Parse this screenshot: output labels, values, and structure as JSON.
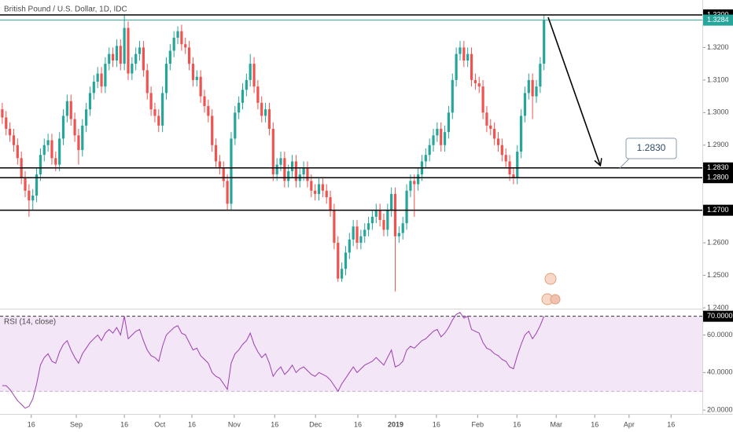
{
  "chart_data": [
    {
      "type": "candlestick",
      "title": "British Pound / U.S. Dollar, 1D, IDC",
      "up_color": "#26a69a",
      "down_color": "#ef5350",
      "xlim": [
        -0.6,
        183.5
      ],
      "ylim": [
        1.24,
        1.33458
      ],
      "yticks": [
        {
          "value": 1.24,
          "label": "1.2400"
        },
        {
          "value": 1.25,
          "label": "1.2500"
        },
        {
          "value": 1.26,
          "label": "1.2600"
        },
        {
          "value": 1.29,
          "label": "1.2900"
        },
        {
          "value": 1.3,
          "label": "1.3000"
        },
        {
          "value": 1.31,
          "label": "1.3100"
        },
        {
          "value": 1.32,
          "label": "1.3200"
        }
      ],
      "levels": [
        {
          "value": 1.33,
          "label": "1.3300"
        },
        {
          "value": 1.283,
          "label": "1.2830"
        },
        {
          "value": 1.28,
          "label": "1.2800"
        },
        {
          "value": 1.27,
          "label": "1.2700"
        }
      ],
      "last_price": {
        "value": 1.3284,
        "label": "1.3284",
        "color": "#26a69a"
      },
      "annotation": "1.2830",
      "xticks": [
        {
          "value": 7.6,
          "label": "16"
        },
        {
          "value": 19.4,
          "label": "Sep"
        },
        {
          "value": 32,
          "label": "16"
        },
        {
          "value": 41.3,
          "label": "Oct"
        },
        {
          "value": 49.7,
          "label": "16"
        },
        {
          "value": 60.8,
          "label": "Nov"
        },
        {
          "value": 71.4,
          "label": "16"
        },
        {
          "value": 82.1,
          "label": "Dec"
        },
        {
          "value": 93.2,
          "label": "16"
        },
        {
          "value": 103.1,
          "label": "2019",
          "bold": true
        },
        {
          "value": 113.8,
          "label": "16"
        },
        {
          "value": 124.6,
          "label": "Feb"
        },
        {
          "value": 134.9,
          "label": "16"
        },
        {
          "value": 145.2,
          "label": "Mar"
        },
        {
          "value": 155.3,
          "label": "16"
        },
        {
          "value": 164.3,
          "label": "Apr"
        },
        {
          "value": 175.3,
          "label": "16"
        }
      ],
      "ohlc": [
        [
          1.301,
          1.303,
          1.2965,
          1.2985
        ],
        [
          1.2985,
          1.3005,
          1.293,
          1.295
        ],
        [
          1.295,
          1.297,
          1.291,
          1.293
        ],
        [
          1.293,
          1.295,
          1.288,
          1.29
        ],
        [
          1.29,
          1.292,
          1.284,
          1.286
        ],
        [
          1.286,
          1.288,
          1.278,
          1.28
        ],
        [
          1.28,
          1.282,
          1.274,
          1.276
        ],
        [
          1.276,
          1.278,
          1.268,
          1.273
        ],
        [
          1.273,
          1.2765,
          1.27,
          1.2745
        ],
        [
          1.2745,
          1.283,
          1.2725,
          1.281
        ],
        [
          1.281,
          1.289,
          1.279,
          1.287
        ],
        [
          1.287,
          1.292,
          1.285,
          1.29
        ],
        [
          1.29,
          1.2935,
          1.288,
          1.2915
        ],
        [
          1.2915,
          1.2935,
          1.284,
          1.286
        ],
        [
          1.286,
          1.288,
          1.282,
          1.284
        ],
        [
          1.284,
          1.294,
          1.282,
          1.292
        ],
        [
          1.292,
          1.301,
          1.29,
          1.299
        ],
        [
          1.299,
          1.3055,
          1.297,
          1.3035
        ],
        [
          1.3035,
          1.3055,
          1.296,
          1.298
        ],
        [
          1.298,
          1.3,
          1.291,
          1.293
        ],
        [
          1.293,
          1.295,
          1.284,
          1.2885
        ],
        [
          1.2885,
          1.298,
          1.2865,
          1.296
        ],
        [
          1.296,
          1.303,
          1.294,
          1.301
        ],
        [
          1.301,
          1.308,
          1.299,
          1.306
        ],
        [
          1.306,
          1.3115,
          1.304,
          1.3095
        ],
        [
          1.3095,
          1.314,
          1.3075,
          1.312
        ],
        [
          1.312,
          1.314,
          1.306,
          1.308
        ],
        [
          1.308,
          1.317,
          1.306,
          1.315
        ],
        [
          1.315,
          1.32,
          1.313,
          1.318
        ],
        [
          1.318,
          1.32,
          1.314,
          1.316
        ],
        [
          1.316,
          1.3225,
          1.314,
          1.3205
        ],
        [
          1.3205,
          1.3225,
          1.313,
          1.315
        ],
        [
          1.315,
          1.33,
          1.313,
          1.326
        ],
        [
          1.326,
          1.328,
          1.31,
          1.312
        ],
        [
          1.312,
          1.317,
          1.31,
          1.315
        ],
        [
          1.315,
          1.32,
          1.313,
          1.318
        ],
        [
          1.318,
          1.322,
          1.316,
          1.32
        ],
        [
          1.32,
          1.322,
          1.311,
          1.313
        ],
        [
          1.313,
          1.315,
          1.304,
          1.306
        ],
        [
          1.306,
          1.308,
          1.299,
          1.301
        ],
        [
          1.301,
          1.303,
          1.297,
          1.299
        ],
        [
          1.299,
          1.301,
          1.294,
          1.296
        ],
        [
          1.296,
          1.308,
          1.294,
          1.306
        ],
        [
          1.306,
          1.317,
          1.304,
          1.315
        ],
        [
          1.315,
          1.321,
          1.313,
          1.319
        ],
        [
          1.319,
          1.325,
          1.317,
          1.323
        ],
        [
          1.323,
          1.3265,
          1.321,
          1.325
        ],
        [
          1.325,
          1.327,
          1.319,
          1.321
        ],
        [
          1.321,
          1.323,
          1.318,
          1.32
        ],
        [
          1.32,
          1.322,
          1.313,
          1.315
        ],
        [
          1.315,
          1.317,
          1.308,
          1.31
        ],
        [
          1.31,
          1.313,
          1.308,
          1.311
        ],
        [
          1.311,
          1.313,
          1.303,
          1.305
        ],
        [
          1.305,
          1.307,
          1.3,
          1.302
        ],
        [
          1.302,
          1.304,
          1.297,
          1.299
        ],
        [
          1.299,
          1.301,
          1.288,
          1.29
        ],
        [
          1.29,
          1.292,
          1.283,
          1.285
        ],
        [
          1.285,
          1.287,
          1.281,
          1.283
        ],
        [
          1.283,
          1.285,
          1.277,
          1.279
        ],
        [
          1.279,
          1.281,
          1.27,
          1.272
        ],
        [
          1.272,
          1.294,
          1.27,
          1.292
        ],
        [
          1.292,
          1.302,
          1.29,
          1.3
        ],
        [
          1.3,
          1.305,
          1.298,
          1.303
        ],
        [
          1.303,
          1.309,
          1.301,
          1.307
        ],
        [
          1.307,
          1.312,
          1.305,
          1.31
        ],
        [
          1.31,
          1.318,
          1.308,
          1.315
        ],
        [
          1.315,
          1.317,
          1.306,
          1.308
        ],
        [
          1.308,
          1.31,
          1.301,
          1.303
        ],
        [
          1.303,
          1.305,
          1.297,
          1.299
        ],
        [
          1.299,
          1.303,
          1.297,
          1.301
        ],
        [
          1.301,
          1.303,
          1.293,
          1.295
        ],
        [
          1.295,
          1.297,
          1.279,
          1.281
        ],
        [
          1.281,
          1.286,
          1.279,
          1.284
        ],
        [
          1.284,
          1.288,
          1.282,
          1.286
        ],
        [
          1.286,
          1.288,
          1.277,
          1.279
        ],
        [
          1.279,
          1.284,
          1.277,
          1.282
        ],
        [
          1.282,
          1.287,
          1.28,
          1.285
        ],
        [
          1.285,
          1.287,
          1.277,
          1.279
        ],
        [
          1.279,
          1.283,
          1.277,
          1.281
        ],
        [
          1.281,
          1.285,
          1.279,
          1.283
        ],
        [
          1.283,
          1.285,
          1.277,
          1.279
        ],
        [
          1.279,
          1.281,
          1.274,
          1.276
        ],
        [
          1.276,
          1.278,
          1.273,
          1.275
        ],
        [
          1.275,
          1.28,
          1.273,
          1.278
        ],
        [
          1.278,
          1.28,
          1.274,
          1.276
        ],
        [
          1.276,
          1.278,
          1.272,
          1.274
        ],
        [
          1.274,
          1.276,
          1.268,
          1.27
        ],
        [
          1.27,
          1.272,
          1.258,
          1.26
        ],
        [
          1.26,
          1.262,
          1.248,
          1.249
        ],
        [
          1.249,
          1.254,
          1.248,
          1.252
        ],
        [
          1.252,
          1.259,
          1.25,
          1.257
        ],
        [
          1.257,
          1.263,
          1.255,
          1.261
        ],
        [
          1.261,
          1.267,
          1.259,
          1.265
        ],
        [
          1.265,
          1.267,
          1.258,
          1.26
        ],
        [
          1.26,
          1.264,
          1.258,
          1.262
        ],
        [
          1.262,
          1.266,
          1.26,
          1.264
        ],
        [
          1.264,
          1.268,
          1.262,
          1.266
        ],
        [
          1.266,
          1.27,
          1.264,
          1.268
        ],
        [
          1.268,
          1.272,
          1.266,
          1.27
        ],
        [
          1.27,
          1.272,
          1.265,
          1.267
        ],
        [
          1.267,
          1.269,
          1.262,
          1.264
        ],
        [
          1.264,
          1.272,
          1.262,
          1.27
        ],
        [
          1.27,
          1.277,
          1.268,
          1.275
        ],
        [
          1.275,
          1.277,
          1.245,
          1.262
        ],
        [
          1.262,
          1.265,
          1.26,
          1.263
        ],
        [
          1.263,
          1.268,
          1.261,
          1.266
        ],
        [
          1.266,
          1.278,
          1.264,
          1.276
        ],
        [
          1.276,
          1.281,
          1.274,
          1.279
        ],
        [
          1.279,
          1.281,
          1.268,
          1.278
        ],
        [
          1.278,
          1.283,
          1.276,
          1.281
        ],
        [
          1.281,
          1.287,
          1.279,
          1.285
        ],
        [
          1.285,
          1.289,
          1.283,
          1.287
        ],
        [
          1.287,
          1.292,
          1.285,
          1.29
        ],
        [
          1.29,
          1.295,
          1.288,
          1.293
        ],
        [
          1.293,
          1.297,
          1.291,
          1.295
        ],
        [
          1.295,
          1.297,
          1.288,
          1.29
        ],
        [
          1.29,
          1.296,
          1.288,
          1.294
        ],
        [
          1.294,
          1.302,
          1.292,
          1.3
        ],
        [
          1.3,
          1.312,
          1.298,
          1.31
        ],
        [
          1.31,
          1.32,
          1.308,
          1.318
        ],
        [
          1.318,
          1.322,
          1.316,
          1.32
        ],
        [
          1.32,
          1.322,
          1.314,
          1.316
        ],
        [
          1.316,
          1.32,
          1.314,
          1.318
        ],
        [
          1.318,
          1.32,
          1.308,
          1.31
        ],
        [
          1.31,
          1.312,
          1.307,
          1.309
        ],
        [
          1.309,
          1.311,
          1.306,
          1.308
        ],
        [
          1.308,
          1.31,
          1.298,
          1.3
        ],
        [
          1.3,
          1.302,
          1.294,
          1.296
        ],
        [
          1.296,
          1.298,
          1.293,
          1.295
        ],
        [
          1.295,
          1.297,
          1.29,
          1.292
        ],
        [
          1.292,
          1.294,
          1.288,
          1.29
        ],
        [
          1.29,
          1.292,
          1.285,
          1.287
        ],
        [
          1.287,
          1.289,
          1.283,
          1.285
        ],
        [
          1.285,
          1.287,
          1.279,
          1.281
        ],
        [
          1.281,
          1.283,
          1.278,
          1.28
        ],
        [
          1.28,
          1.29,
          1.278,
          1.288
        ],
        [
          1.288,
          1.301,
          1.286,
          1.299
        ],
        [
          1.299,
          1.308,
          1.297,
          1.306
        ],
        [
          1.306,
          1.312,
          1.304,
          1.31
        ],
        [
          1.31,
          1.312,
          1.298,
          1.305
        ],
        [
          1.305,
          1.31,
          1.303,
          1.308
        ],
        [
          1.308,
          1.317,
          1.306,
          1.315
        ],
        [
          1.315,
          1.33,
          1.313,
          1.3284
        ]
      ]
    },
    {
      "type": "line",
      "title": "RSI (14, close)",
      "color": "#9c3fb0",
      "band_color": "#f3e6f7",
      "bands": [
        30,
        70
      ],
      "ylim": [
        19.2,
        73.2
      ],
      "yticks": [
        {
          "value": 20,
          "label": "20.0000"
        },
        {
          "value": 40,
          "label": "40.0000"
        },
        {
          "value": 60,
          "label": "60.0000"
        }
      ],
      "last_label": "70.0000",
      "values": [
        33,
        33,
        31,
        28,
        25,
        23,
        21,
        22,
        26,
        34,
        44,
        48,
        50,
        46,
        45,
        51,
        55,
        57,
        52,
        48,
        45,
        50,
        53,
        56,
        58,
        60,
        57,
        61,
        63,
        61,
        64,
        60,
        70,
        58,
        60,
        62,
        63,
        57,
        52,
        49,
        48,
        46,
        54,
        60,
        62,
        64,
        65,
        61,
        60,
        56,
        52,
        53,
        49,
        47,
        45,
        40,
        38,
        37,
        34,
        31,
        45,
        50,
        52,
        55,
        57,
        61,
        55,
        51,
        48,
        50,
        45,
        38,
        41,
        43,
        39,
        41,
        44,
        40,
        42,
        43,
        41,
        39,
        38,
        40,
        39,
        38,
        36,
        33,
        30,
        34,
        37,
        40,
        43,
        40,
        42,
        44,
        45,
        46,
        48,
        46,
        44,
        48,
        52,
        43,
        44,
        46,
        52,
        54,
        53,
        55,
        57,
        58,
        60,
        62,
        63,
        59,
        61,
        64,
        68,
        71,
        72,
        69,
        70,
        63,
        62,
        61,
        56,
        53,
        52,
        50,
        49,
        47,
        46,
        43,
        42,
        49,
        55,
        60,
        62,
        58,
        61,
        65,
        70
      ]
    }
  ]
}
